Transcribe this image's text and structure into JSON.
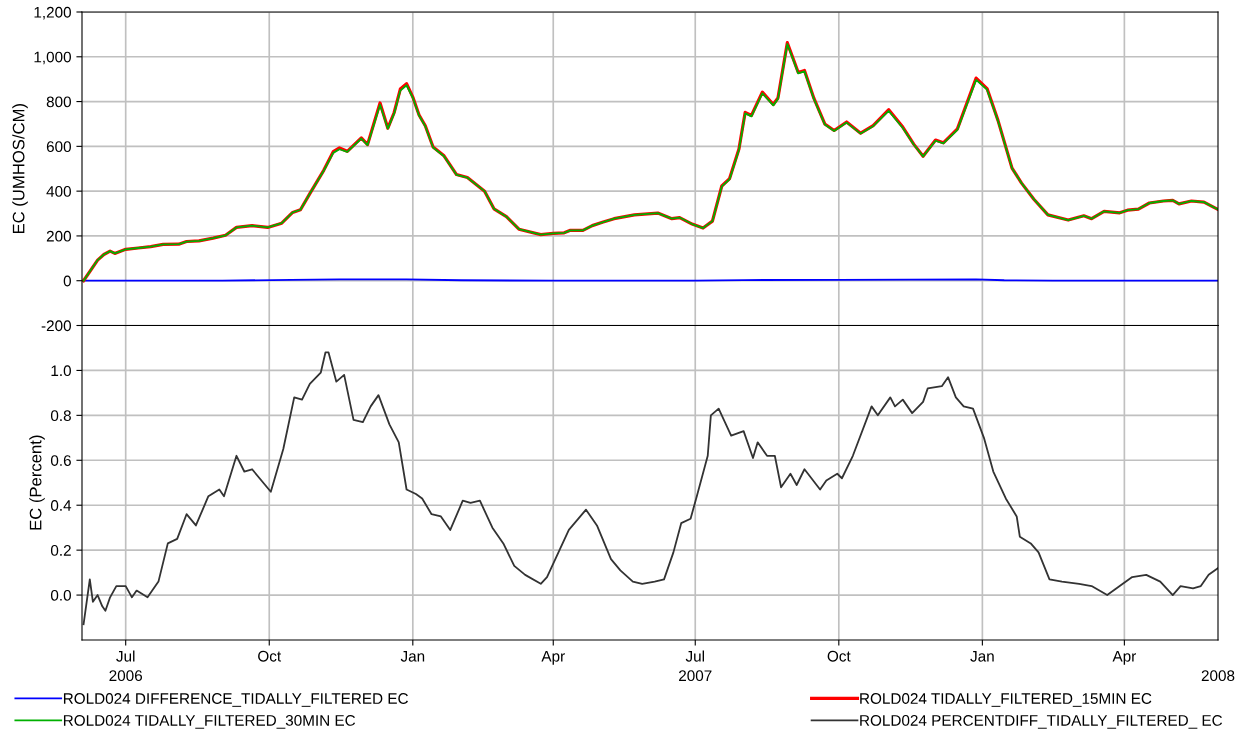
{
  "chart_data": [
    {
      "type": "line",
      "ylabel": "EC (UMHOS/CM)",
      "xlim": [
        "2006-06-03",
        "2008-05-31"
      ],
      "xticks": [
        {
          "value": "2006-07-01",
          "label": null
        },
        {
          "value": "2006-10-01",
          "label": null
        },
        {
          "value": "2007-01-01",
          "label": null
        },
        {
          "value": "2007-04-01",
          "label": null
        },
        {
          "value": "2007-07-01",
          "label": null
        },
        {
          "value": "2007-10-01",
          "label": null
        },
        {
          "value": "2008-01-01",
          "label": null
        },
        {
          "value": "2008-04-01",
          "label": null
        }
      ],
      "ylim": [
        -200,
        1200
      ],
      "yticks": [
        {
          "value": -200,
          "label": "-200"
        },
        0,
        200,
        400,
        600,
        800,
        {
          "value": 1000,
          "label": "1,000"
        },
        {
          "value": 1200,
          "label": "1,200"
        }
      ],
      "grid": true,
      "legend": "bottom",
      "tick_labels": "y",
      "marker": "none",
      "line_style": "solid",
      "series": [
        {
          "name": "ROLD024 DIFFERENCE_TIDALLY_FILTERED EC",
          "color": "#0000ff",
          "x": [
            "2006-06-04",
            "2006-09-01",
            "2006-10-15",
            "2006-11-15",
            "2006-12-28",
            "2007-02-01",
            "2007-04-01",
            "2007-07-01",
            "2007-08-01",
            "2007-10-01",
            "2007-11-15",
            "2007-12-28",
            "2008-01-15",
            "2008-02-15",
            "2008-05-31"
          ],
          "values": [
            0,
            0,
            4,
            6,
            6,
            2,
            0,
            0,
            3,
            4,
            5,
            6,
            2,
            0,
            0
          ]
        },
        {
          "name": "ROLD024 TIDALLY_FILTERED_15MIN EC",
          "color": "#ff0000",
          "x": [
            "2006-06-04",
            "2006-06-13",
            "2006-06-17",
            "2006-06-21",
            "2006-06-24",
            "2006-07-01",
            "2006-07-09",
            "2006-07-17",
            "2006-07-25",
            "2006-08-04",
            "2006-08-09",
            "2006-08-17",
            "2006-08-26",
            "2006-09-03",
            "2006-09-10",
            "2006-09-20",
            "2006-09-30",
            "2006-10-09",
            "2006-10-16",
            "2006-10-21",
            "2006-10-27",
            "2006-11-05",
            "2006-11-11",
            "2006-11-15",
            "2006-11-20",
            "2006-11-29",
            "2006-12-03",
            "2006-12-11",
            "2006-12-16",
            "2006-12-20",
            "2006-12-24",
            "2006-12-28",
            "2007-01-01",
            "2007-01-05",
            "2007-01-09",
            "2007-01-14",
            "2007-01-21",
            "2007-01-29",
            "2007-02-05",
            "2007-02-16",
            "2007-02-22",
            "2007-03-02",
            "2007-03-10",
            "2007-03-24",
            "2007-04-01",
            "2007-04-08",
            "2007-04-12",
            "2007-04-20",
            "2007-04-26",
            "2007-05-03",
            "2007-05-10",
            "2007-05-23",
            "2007-06-07",
            "2007-06-16",
            "2007-06-21",
            "2007-06-29",
            "2007-07-06",
            "2007-07-12",
            "2007-07-18",
            "2007-07-23",
            "2007-07-29",
            "2007-08-02",
            "2007-08-06",
            "2007-08-13",
            "2007-08-20",
            "2007-08-23",
            "2007-08-29",
            "2007-09-05",
            "2007-09-09",
            "2007-09-15",
            "2007-09-22",
            "2007-09-28",
            "2007-10-06",
            "2007-10-15",
            "2007-10-23",
            "2007-11-02",
            "2007-11-11",
            "2007-11-18",
            "2007-11-24",
            "2007-12-02",
            "2007-12-07",
            "2007-12-16",
            "2007-12-28",
            "2008-01-04",
            "2008-01-11",
            "2008-01-20",
            "2008-01-26",
            "2008-02-03",
            "2008-02-12",
            "2008-02-25",
            "2008-03-06",
            "2008-03-11",
            "2008-03-19",
            "2008-03-29",
            "2008-04-03",
            "2008-04-10",
            "2008-04-17",
            "2008-04-26",
            "2008-05-02",
            "2008-05-06",
            "2008-05-14",
            "2008-05-22",
            "2008-05-31"
          ],
          "values": [
            0,
            92,
            117,
            132,
            122,
            140,
            146,
            152,
            162,
            163,
            175,
            178,
            190,
            203,
            238,
            246,
            238,
            257,
            305,
            317,
            389,
            494,
            576,
            593,
            578,
            638,
            608,
            794,
            681,
            750,
            856,
            880,
            820,
            740,
            692,
            597,
            558,
            474,
            461,
            400,
            321,
            286,
            230,
            206,
            211,
            214,
            225,
            225,
            246,
            262,
            277,
            294,
            302,
            277,
            282,
            253,
            235,
            266,
            423,
            456,
            588,
            752,
            738,
            842,
            787,
            816,
            1063,
            930,
            939,
            815,
            700,
            671,
            709,
            659,
            693,
            764,
            686,
            610,
            556,
            628,
            616,
            678,
            905,
            858,
            716,
            503,
            437,
            364,
            294,
            271,
            290,
            277,
            310,
            303,
            315,
            320,
            347,
            356,
            359,
            343,
            356,
            351,
            318
          ]
        },
        {
          "name": "ROLD024 TIDALLY_FILTERED_30MIN EC",
          "color": "#00b000",
          "x": [
            "2006-06-04",
            "2006-06-13",
            "2006-06-17",
            "2006-06-21",
            "2006-06-24",
            "2006-07-01",
            "2006-07-09",
            "2006-07-17",
            "2006-07-25",
            "2006-08-04",
            "2006-08-09",
            "2006-08-17",
            "2006-08-26",
            "2006-09-03",
            "2006-09-10",
            "2006-09-20",
            "2006-09-30",
            "2006-10-09",
            "2006-10-16",
            "2006-10-21",
            "2006-10-27",
            "2006-11-05",
            "2006-11-11",
            "2006-11-15",
            "2006-11-20",
            "2006-11-29",
            "2006-12-03",
            "2006-12-11",
            "2006-12-16",
            "2006-12-20",
            "2006-12-24",
            "2006-12-28",
            "2007-01-01",
            "2007-01-05",
            "2007-01-09",
            "2007-01-14",
            "2007-01-21",
            "2007-01-29",
            "2007-02-05",
            "2007-02-16",
            "2007-02-22",
            "2007-03-02",
            "2007-03-10",
            "2007-03-24",
            "2007-04-01",
            "2007-04-08",
            "2007-04-12",
            "2007-04-20",
            "2007-04-26",
            "2007-05-03",
            "2007-05-10",
            "2007-05-23",
            "2007-06-07",
            "2007-06-16",
            "2007-06-21",
            "2007-06-29",
            "2007-07-06",
            "2007-07-12",
            "2007-07-18",
            "2007-07-23",
            "2007-07-29",
            "2007-08-02",
            "2007-08-06",
            "2007-08-13",
            "2007-08-20",
            "2007-08-23",
            "2007-08-29",
            "2007-09-05",
            "2007-09-09",
            "2007-09-15",
            "2007-09-22",
            "2007-09-28",
            "2007-10-06",
            "2007-10-15",
            "2007-10-23",
            "2007-11-02",
            "2007-11-11",
            "2007-11-18",
            "2007-11-24",
            "2007-12-02",
            "2007-12-07",
            "2007-12-16",
            "2007-12-28",
            "2008-01-04",
            "2008-01-11",
            "2008-01-20",
            "2008-01-26",
            "2008-02-03",
            "2008-02-12",
            "2008-02-25",
            "2008-03-06",
            "2008-03-11",
            "2008-03-19",
            "2008-03-29",
            "2008-04-03",
            "2008-04-10",
            "2008-04-17",
            "2008-04-26",
            "2008-05-02",
            "2008-05-06",
            "2008-05-14",
            "2008-05-22",
            "2008-05-31"
          ],
          "values": [
            0,
            92,
            117,
            132,
            122,
            140,
            146,
            152,
            162,
            163,
            175,
            178,
            190,
            203,
            238,
            246,
            238,
            257,
            305,
            317,
            389,
            492,
            571,
            587,
            575,
            635,
            606,
            786,
            679,
            746,
            849,
            873,
            817,
            738,
            690,
            595,
            556,
            473,
            460,
            400,
            321,
            286,
            230,
            206,
            211,
            214,
            225,
            225,
            246,
            262,
            277,
            294,
            302,
            277,
            282,
            253,
            235,
            266,
            421,
            453,
            584,
            747,
            734,
            837,
            783,
            812,
            1057,
            926,
            935,
            812,
            698,
            669,
            706,
            657,
            690,
            758,
            682,
            608,
            555,
            625,
            613,
            674,
            897,
            853,
            714,
            502,
            437,
            364,
            294,
            271,
            290,
            277,
            310,
            303,
            315,
            320,
            347,
            356,
            359,
            343,
            356,
            351,
            318
          ]
        }
      ]
    },
    {
      "type": "line",
      "ylabel": "EC (Percent)",
      "xlim": [
        "2006-06-03",
        "2008-05-31"
      ],
      "xticks": [
        {
          "value": "2006-07-01",
          "label": "Jul"
        },
        {
          "value": "2006-10-01",
          "label": "Oct"
        },
        {
          "value": "2007-01-01",
          "label": "Jan"
        },
        {
          "value": "2007-04-01",
          "label": "Apr"
        },
        {
          "value": "2007-07-01",
          "label": "Jul"
        },
        {
          "value": "2007-10-01",
          "label": "Oct"
        },
        {
          "value": "2008-01-01",
          "label": "Jan"
        },
        {
          "value": "2008-04-01",
          "label": "Apr"
        }
      ],
      "x2lim": [
        "2006-06-03",
        "2008-05-31"
      ],
      "x2ticks": [
        {
          "value": "2006-07-01",
          "label": "2006"
        },
        {
          "value": "2007-07-01",
          "label": "2007"
        },
        {
          "value": "2008-05-31",
          "label": "2008"
        }
      ],
      "ylim": [
        -0.2,
        1.2
      ],
      "yticks": [
        {
          "value": 0,
          "label": "0.0"
        },
        0.2,
        0.4,
        0.6,
        0.8,
        {
          "value": 1,
          "label": "1.0"
        }
      ],
      "grid": true,
      "legend": "bottom",
      "marker": "none",
      "line_style": "solid",
      "series": [
        {
          "name": "ROLD024 PERCENTDIFF_TIDALLY_FILTERED_ EC",
          "color": "#333333",
          "x": [
            "2006-06-04",
            "2006-06-06",
            "2006-06-08",
            "2006-06-10",
            "2006-06-13",
            "2006-06-16",
            "2006-06-18",
            "2006-06-21",
            "2006-06-25",
            "2006-07-01",
            "2006-07-05",
            "2006-07-08",
            "2006-07-15",
            "2006-07-22",
            "2006-07-28",
            "2006-08-03",
            "2006-08-09",
            "2006-08-15",
            "2006-08-23",
            "2006-08-30",
            "2006-09-02",
            "2006-09-10",
            "2006-09-15",
            "2006-09-20",
            "2006-10-02",
            "2006-10-10",
            "2006-10-17",
            "2006-10-22",
            "2006-10-27",
            "2006-11-03",
            "2006-11-06",
            "2006-11-08",
            "2006-11-13",
            "2006-11-18",
            "2006-11-24",
            "2006-11-30",
            "2006-12-05",
            "2006-12-10",
            "2006-12-17",
            "2006-12-23",
            "2006-12-28",
            "2007-01-03",
            "2007-01-07",
            "2007-01-13",
            "2007-01-19",
            "2007-01-25",
            "2007-02-02",
            "2007-02-07",
            "2007-02-13",
            "2007-02-21",
            "2007-02-28",
            "2007-03-07",
            "2007-03-14",
            "2007-03-24",
            "2007-03-28",
            "2007-04-05",
            "2007-04-11",
            "2007-04-22",
            "2007-04-29",
            "2007-05-08",
            "2007-05-14",
            "2007-05-22",
            "2007-05-28",
            "2007-06-05",
            "2007-06-11",
            "2007-06-17",
            "2007-06-22",
            "2007-06-28",
            "2007-07-02",
            "2007-07-09",
            "2007-07-11",
            "2007-07-16",
            "2007-07-20",
            "2007-07-24",
            "2007-08-01",
            "2007-08-07",
            "2007-08-10",
            "2007-08-16",
            "2007-08-21",
            "2007-08-25",
            "2007-08-31",
            "2007-09-04",
            "2007-09-09",
            "2007-09-19",
            "2007-09-23",
            "2007-09-30",
            "2007-10-03",
            "2007-10-10",
            "2007-10-22",
            "2007-10-26",
            "2007-11-03",
            "2007-11-06",
            "2007-11-11",
            "2007-11-17",
            "2007-11-24",
            "2007-11-27",
            "2007-12-06",
            "2007-12-10",
            "2007-12-15",
            "2007-12-20",
            "2007-12-26",
            "2008-01-02",
            "2008-01-08",
            "2008-01-16",
            "2008-01-23",
            "2008-01-25",
            "2008-02-01",
            "2008-02-06",
            "2008-02-13",
            "2008-02-21",
            "2008-03-03",
            "2008-03-11",
            "2008-03-21",
            "2008-03-29",
            "2008-04-06",
            "2008-04-15",
            "2008-04-24",
            "2008-05-02",
            "2008-05-07",
            "2008-05-15",
            "2008-05-20",
            "2008-05-25",
            "2008-05-31"
          ],
          "values": [
            -0.13,
            -0.03,
            0.07,
            -0.03,
            0.0,
            -0.05,
            -0.07,
            -0.01,
            0.04,
            0.04,
            -0.01,
            0.02,
            -0.01,
            0.06,
            0.23,
            0.25,
            0.36,
            0.31,
            0.44,
            0.47,
            0.44,
            0.62,
            0.55,
            0.56,
            0.46,
            0.65,
            0.88,
            0.87,
            0.94,
            0.99,
            1.08,
            1.08,
            0.95,
            0.98,
            0.78,
            0.77,
            0.84,
            0.89,
            0.76,
            0.68,
            0.47,
            0.45,
            0.43,
            0.36,
            0.35,
            0.29,
            0.42,
            0.41,
            0.42,
            0.3,
            0.23,
            0.13,
            0.09,
            0.05,
            0.08,
            0.2,
            0.29,
            0.38,
            0.31,
            0.16,
            0.11,
            0.06,
            0.05,
            0.06,
            0.07,
            0.19,
            0.32,
            0.34,
            0.44,
            0.62,
            0.8,
            0.83,
            0.77,
            0.71,
            0.73,
            0.61,
            0.68,
            0.62,
            0.62,
            0.48,
            0.54,
            0.49,
            0.56,
            0.47,
            0.51,
            0.54,
            0.52,
            0.62,
            0.84,
            0.8,
            0.88,
            0.84,
            0.87,
            0.81,
            0.86,
            0.92,
            0.93,
            0.97,
            0.88,
            0.84,
            0.83,
            0.7,
            0.55,
            0.43,
            0.35,
            0.26,
            0.23,
            0.19,
            0.07,
            0.06,
            0.05,
            0.04,
            0.0,
            0.04,
            0.08,
            0.09,
            0.06,
            0.0,
            0.04,
            0.03,
            0.04,
            0.09,
            0.12
          ]
        }
      ]
    }
  ]
}
